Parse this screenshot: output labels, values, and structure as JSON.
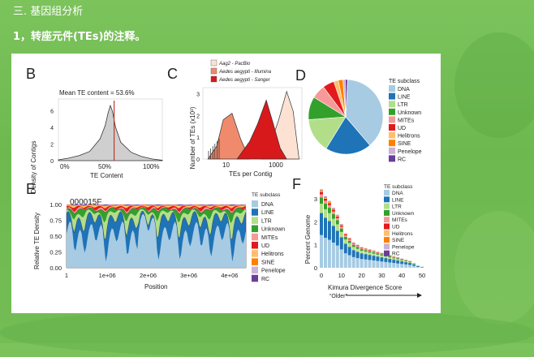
{
  "header": {
    "section_title": "三. 基因组分析",
    "subtitle": "1，转座元件(TEs)的注释。"
  },
  "colors": {
    "DNA": "#a6cbe3",
    "LINE": "#1f73b7",
    "LTR": "#b2de8a",
    "Unknown": "#33a02c",
    "MITEs": "#f59a99",
    "UD": "#e31a1c",
    "Helitrons": "#fdbf6f",
    "SINE": "#ff7f00",
    "Penelope": "#cab2d6",
    "RC": "#6a3d9a"
  },
  "figure": {
    "panels": {
      "B": {
        "letter": "B",
        "title": "Mean TE content = 53.6%",
        "ylabel": "Density of Contigs",
        "xlabel": "TE Content",
        "xticks": [
          "0%",
          "50%",
          "100%"
        ],
        "yticks": [
          "0",
          "2",
          "4",
          "6"
        ]
      },
      "C": {
        "letter": "C",
        "ylabel": "Number of TEs (x10³)",
        "xlabel": "TEs per Contig",
        "xticks": [
          "10",
          "1000"
        ],
        "yticks": [
          "0",
          "1",
          "2",
          "3"
        ],
        "legend": [
          {
            "label": "Aag2 - PacBio",
            "color": "#fde2d4"
          },
          {
            "label": "Aedes aegypti - Illumina",
            "color": "#f08a6c"
          },
          {
            "label": "Aedes aegypti - Sanger",
            "color": "#d7191c"
          }
        ]
      },
      "D": {
        "letter": "D",
        "legend_title": "TE subclass"
      },
      "E": {
        "letter": "E",
        "contig": "000015F",
        "ylabel": "Relative TE Density",
        "xlabel": "Position",
        "yticks": [
          "0.00",
          "0.25",
          "0.50",
          "0.75",
          "1.00"
        ],
        "xticks": [
          "1",
          "1e+06",
          "2e+06",
          "3e+06",
          "4e+06"
        ],
        "legend_title": "TE subclass"
      },
      "F": {
        "letter": "F",
        "ylabel": "Percent Genome",
        "xlabel": "Kimura Divergence Score",
        "xticks": [
          "0",
          "10",
          "20",
          "30",
          "40",
          "50"
        ],
        "yticks": [
          "0",
          "1",
          "2",
          "3"
        ],
        "older_label": "“Older”",
        "legend_title": "TE subclass"
      }
    },
    "subclasses": [
      "DNA",
      "LINE",
      "LTR",
      "Unknown",
      "MITEs",
      "UD",
      "Helitrons",
      "SINE",
      "Penelope",
      "RC"
    ]
  },
  "chart_data": [
    {
      "type": "area",
      "panel": "B",
      "title": "Mean TE content = 53.6%",
      "xlabel": "TE Content",
      "ylabel": "Density of Contigs",
      "x": [
        0,
        10,
        20,
        30,
        40,
        45,
        48,
        50,
        52,
        55,
        60,
        70,
        80,
        90,
        100
      ],
      "values": [
        0.1,
        0.3,
        0.6,
        1.1,
        2.6,
        4.2,
        5.8,
        6.6,
        5.9,
        4.0,
        2.2,
        1.0,
        0.5,
        0.2,
        0.05
      ],
      "mean_line": 53.6,
      "ylim": [
        0,
        7
      ]
    },
    {
      "type": "area",
      "panel": "C",
      "xlabel": "TEs per Contig",
      "ylabel": "Number of TEs (x10³)",
      "log_x": true,
      "series": [
        {
          "name": "Aag2 - PacBio",
          "x": [
            200,
            400,
            800,
            1500,
            2500,
            4000
          ],
          "values": [
            0.0,
            0.6,
            1.8,
            3.1,
            2.2,
            0.0
          ]
        },
        {
          "name": "Aedes aegypti - Illumina",
          "x": [
            3,
            6,
            10,
            20,
            40,
            80
          ],
          "values": [
            0.0,
            0.6,
            1.8,
            2.1,
            0.9,
            0.0
          ]
        },
        {
          "name": "Aedes aegypti - Sanger",
          "x": [
            30,
            80,
            150,
            300,
            500,
            900,
            1500
          ],
          "values": [
            0.0,
            0.8,
            1.6,
            2.7,
            1.7,
            0.5,
            0.0
          ]
        }
      ],
      "ylim": [
        0,
        3.2
      ]
    },
    {
      "type": "pie",
      "panel": "D",
      "categories": [
        "DNA",
        "LINE",
        "LTR",
        "Unknown",
        "MITEs",
        "UD",
        "Helitrons",
        "SINE",
        "Penelope",
        "RC"
      ],
      "values": [
        38,
        20,
        15,
        10,
        6,
        5,
        2,
        2,
        1,
        1
      ]
    },
    {
      "type": "area",
      "panel": "E",
      "title": "000015F",
      "xlabel": "Position",
      "ylabel": "Relative TE Density",
      "xlim": [
        1,
        4400000
      ],
      "ylim": [
        0,
        1.0
      ]
    },
    {
      "type": "bar",
      "panel": "F",
      "xlabel": "Kimura Divergence Score",
      "ylabel": "Percent Genome",
      "x": [
        0,
        2,
        4,
        6,
        8,
        10,
        12,
        14,
        16,
        18,
        20,
        22,
        24,
        26,
        28,
        30,
        32,
        34,
        36,
        38,
        40,
        42,
        44,
        46,
        48,
        50
      ],
      "values": [
        3.4,
        3.1,
        2.9,
        2.6,
        2.3,
        1.9,
        1.5,
        1.3,
        1.1,
        1.0,
        0.9,
        0.85,
        0.8,
        0.75,
        0.7,
        0.65,
        0.6,
        0.55,
        0.5,
        0.45,
        0.4,
        0.35,
        0.3,
        0.2,
        0.1,
        0.05
      ],
      "xlim": [
        0,
        50
      ],
      "ylim": [
        0,
        3.6
      ]
    }
  ]
}
